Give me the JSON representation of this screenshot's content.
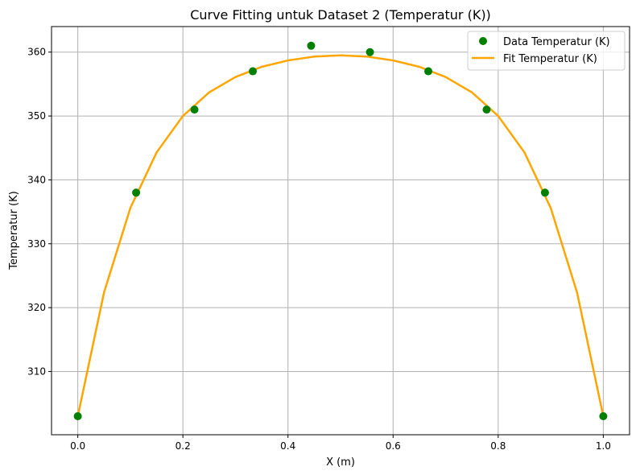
{
  "chart_data": {
    "type": "scatter",
    "title": "Curve Fitting untuk Dataset 2 (Temperatur (K))",
    "xlabel": "X (m)",
    "ylabel": "Temperatur (K)",
    "xlim": [
      -0.05,
      1.05
    ],
    "ylim": [
      300.1,
      364.0
    ],
    "xticks": [
      0.0,
      0.2,
      0.4,
      0.6,
      0.8,
      1.0
    ],
    "xtick_labels": [
      "0.0",
      "0.2",
      "0.4",
      "0.6",
      "0.8",
      "1.0"
    ],
    "yticks": [
      310,
      320,
      330,
      340,
      350,
      360
    ],
    "ytick_labels": [
      "310",
      "320",
      "330",
      "340",
      "350",
      "360"
    ],
    "grid": true,
    "legend_position": "top-right",
    "series": [
      {
        "name": "Data Temperatur (K)",
        "kind": "scatter",
        "color": "#008000",
        "x": [
          0.0,
          0.111,
          0.222,
          0.333,
          0.444,
          0.556,
          0.667,
          0.778,
          0.889,
          1.0
        ],
        "y": [
          303,
          338,
          351,
          357,
          361,
          360,
          357,
          351,
          338,
          303
        ]
      },
      {
        "name": "Fit Temperatur (K)",
        "kind": "line",
        "color": "#ffa500",
        "x": [
          0.0,
          0.05,
          0.1,
          0.15,
          0.2,
          0.25,
          0.3,
          0.35,
          0.4,
          0.45,
          0.5,
          0.55,
          0.6,
          0.65,
          0.7,
          0.75,
          0.8,
          0.85,
          0.9,
          0.95,
          1.0
        ],
        "y": [
          303.0,
          322.4,
          335.6,
          344.3,
          350.0,
          353.7,
          356.1,
          357.7,
          358.7,
          359.3,
          359.5,
          359.3,
          358.7,
          357.7,
          356.1,
          353.7,
          350.0,
          344.3,
          335.6,
          322.4,
          303.0
        ]
      }
    ]
  }
}
